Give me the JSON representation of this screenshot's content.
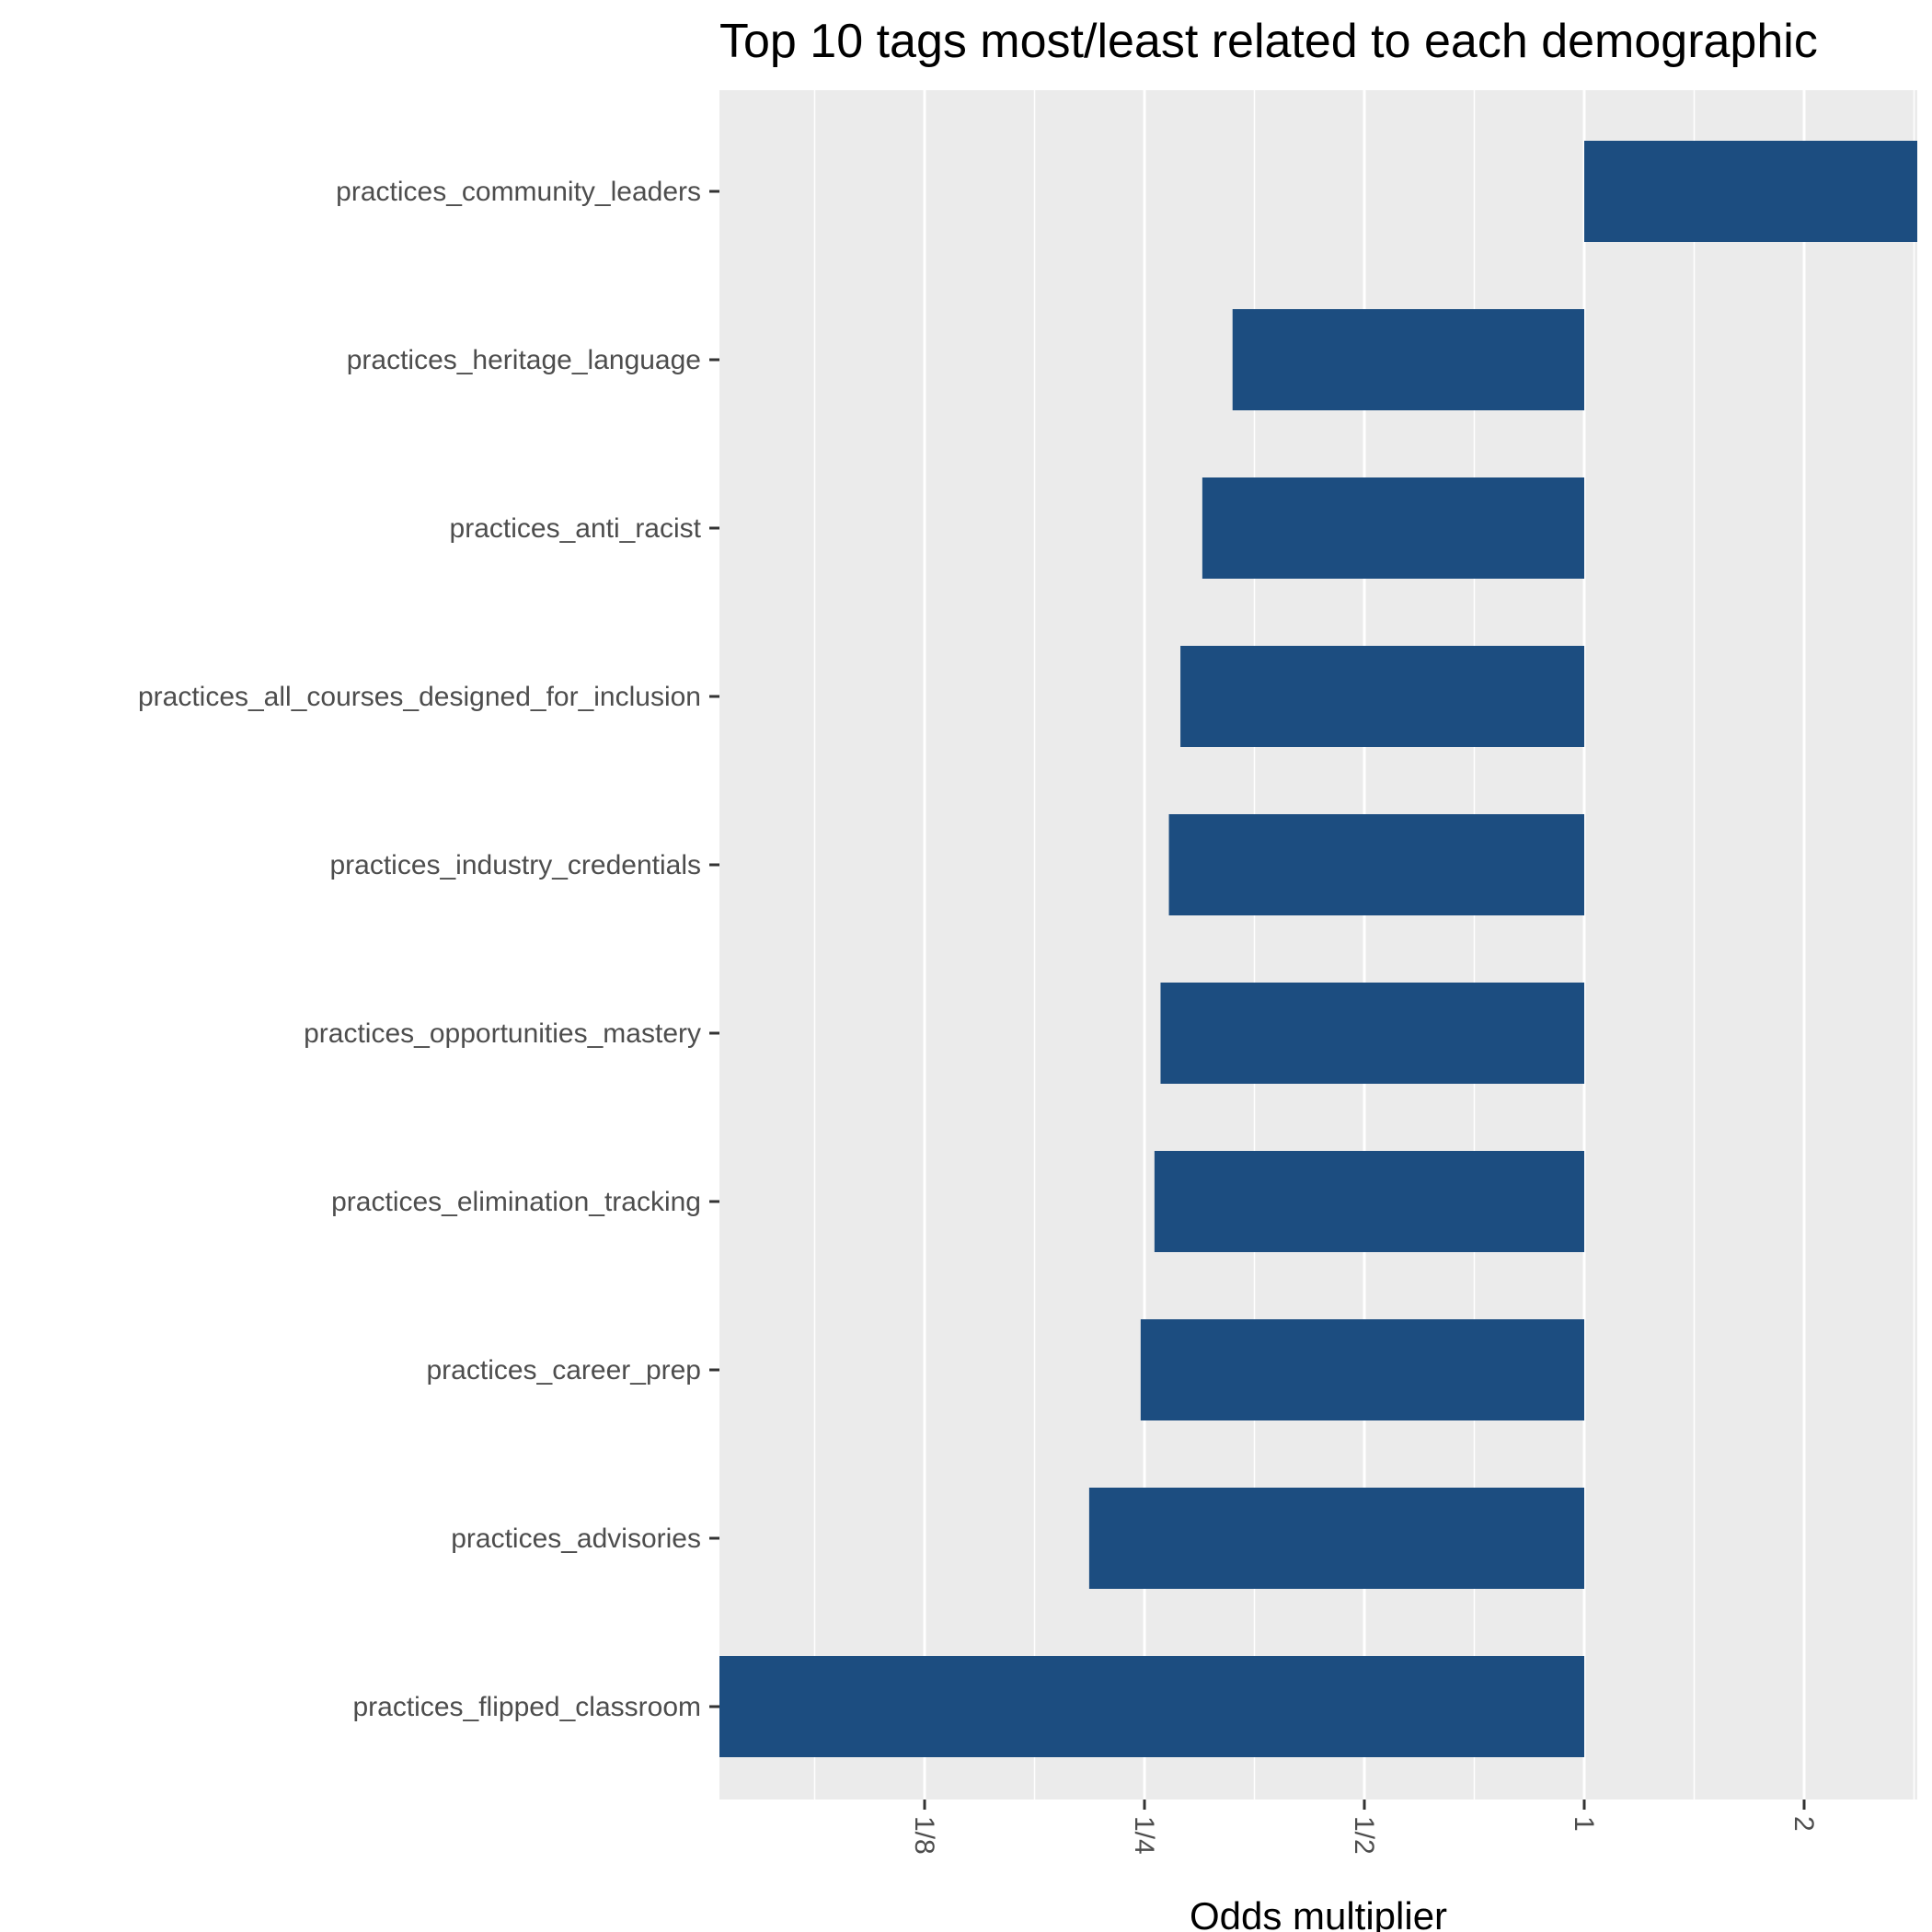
{
  "chart_data": {
    "type": "bar",
    "orientation": "horizontal",
    "title": "Top 10 tags most/least related to each demographic",
    "xlabel": "Odds multiplier",
    "ylabel": "",
    "x_scale": "log2",
    "xlim": [
      0.0625,
      3.3
    ],
    "baseline": 1,
    "x_ticks": [
      {
        "value": 0.125,
        "label": "1/8"
      },
      {
        "value": 0.25,
        "label": "1/4"
      },
      {
        "value": 0.5,
        "label": "1/2"
      },
      {
        "value": 1,
        "label": "1"
      },
      {
        "value": 2,
        "label": "2"
      }
    ],
    "categories": [
      "practices_community_leaders",
      "practices_heritage_language",
      "practices_anti_racist",
      "practices_all_courses_designed_for_inclusion",
      "practices_industry_credentials",
      "practices_opportunities_mastery",
      "practices_elimination_tracking",
      "practices_career_prep",
      "practices_advisories",
      "practices_flipped_classroom"
    ],
    "values": [
      3.3,
      0.33,
      0.3,
      0.28,
      0.27,
      0.263,
      0.258,
      0.247,
      0.21,
      0.06
    ],
    "bar_color": "#1c4d80",
    "panel_color": "#ebebeb",
    "grid": true,
    "legend": "none"
  }
}
